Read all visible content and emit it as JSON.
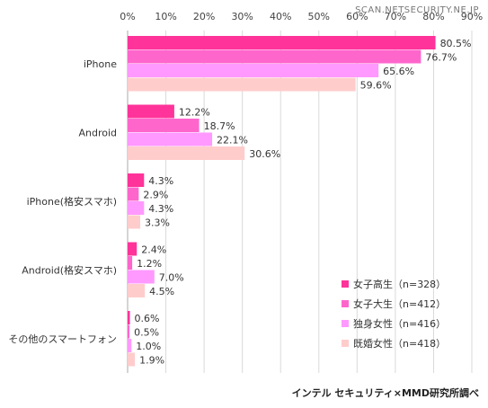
{
  "chart_data": {
    "type": "bar",
    "orientation": "horizontal",
    "categories": [
      "iPhone",
      "Android",
      "iPhone(格安スマホ)",
      "Android(格安スマホ)",
      "その他のスマートフォン"
    ],
    "series": [
      {
        "name": "女子高生（n=328）",
        "color": "#ff3399",
        "values": [
          80.5,
          12.2,
          4.3,
          2.4,
          0.6
        ],
        "labels": [
          "80.5%",
          "12.2%",
          "4.3%",
          "2.4%",
          "0.6%"
        ]
      },
      {
        "name": "女子大生（n=412）",
        "color": "#ff66cc",
        "values": [
          76.7,
          18.7,
          2.9,
          1.2,
          0.5
        ],
        "labels": [
          "76.7%",
          "18.7%",
          "2.9%",
          "1.2%",
          "0.5%"
        ]
      },
      {
        "name": "独身女性（n=416）",
        "color": "#ff99ff",
        "values": [
          65.6,
          22.1,
          4.3,
          7.0,
          1.0
        ],
        "labels": [
          "65.6%",
          "22.1%",
          "4.3%",
          "7.0%",
          "1.0%"
        ]
      },
      {
        "name": "既婚女性（n=418）",
        "color": "#ffcccc",
        "values": [
          59.6,
          30.6,
          3.3,
          4.5,
          1.9
        ],
        "labels": [
          "59.6%",
          "30.6%",
          "3.3%",
          "4.5%",
          "1.9%"
        ]
      }
    ],
    "xlim": [
      0,
      90
    ],
    "x_ticks": [
      "0%",
      "10%",
      "20%",
      "30%",
      "40%",
      "50%",
      "60%",
      "70%",
      "80%",
      "90%"
    ],
    "grid": true,
    "legend": "bottom-right"
  },
  "watermark": "SCAN.NETSECURITY.NE.JP",
  "source_note": "インテル セキュリティ×MMD研究所調べ"
}
